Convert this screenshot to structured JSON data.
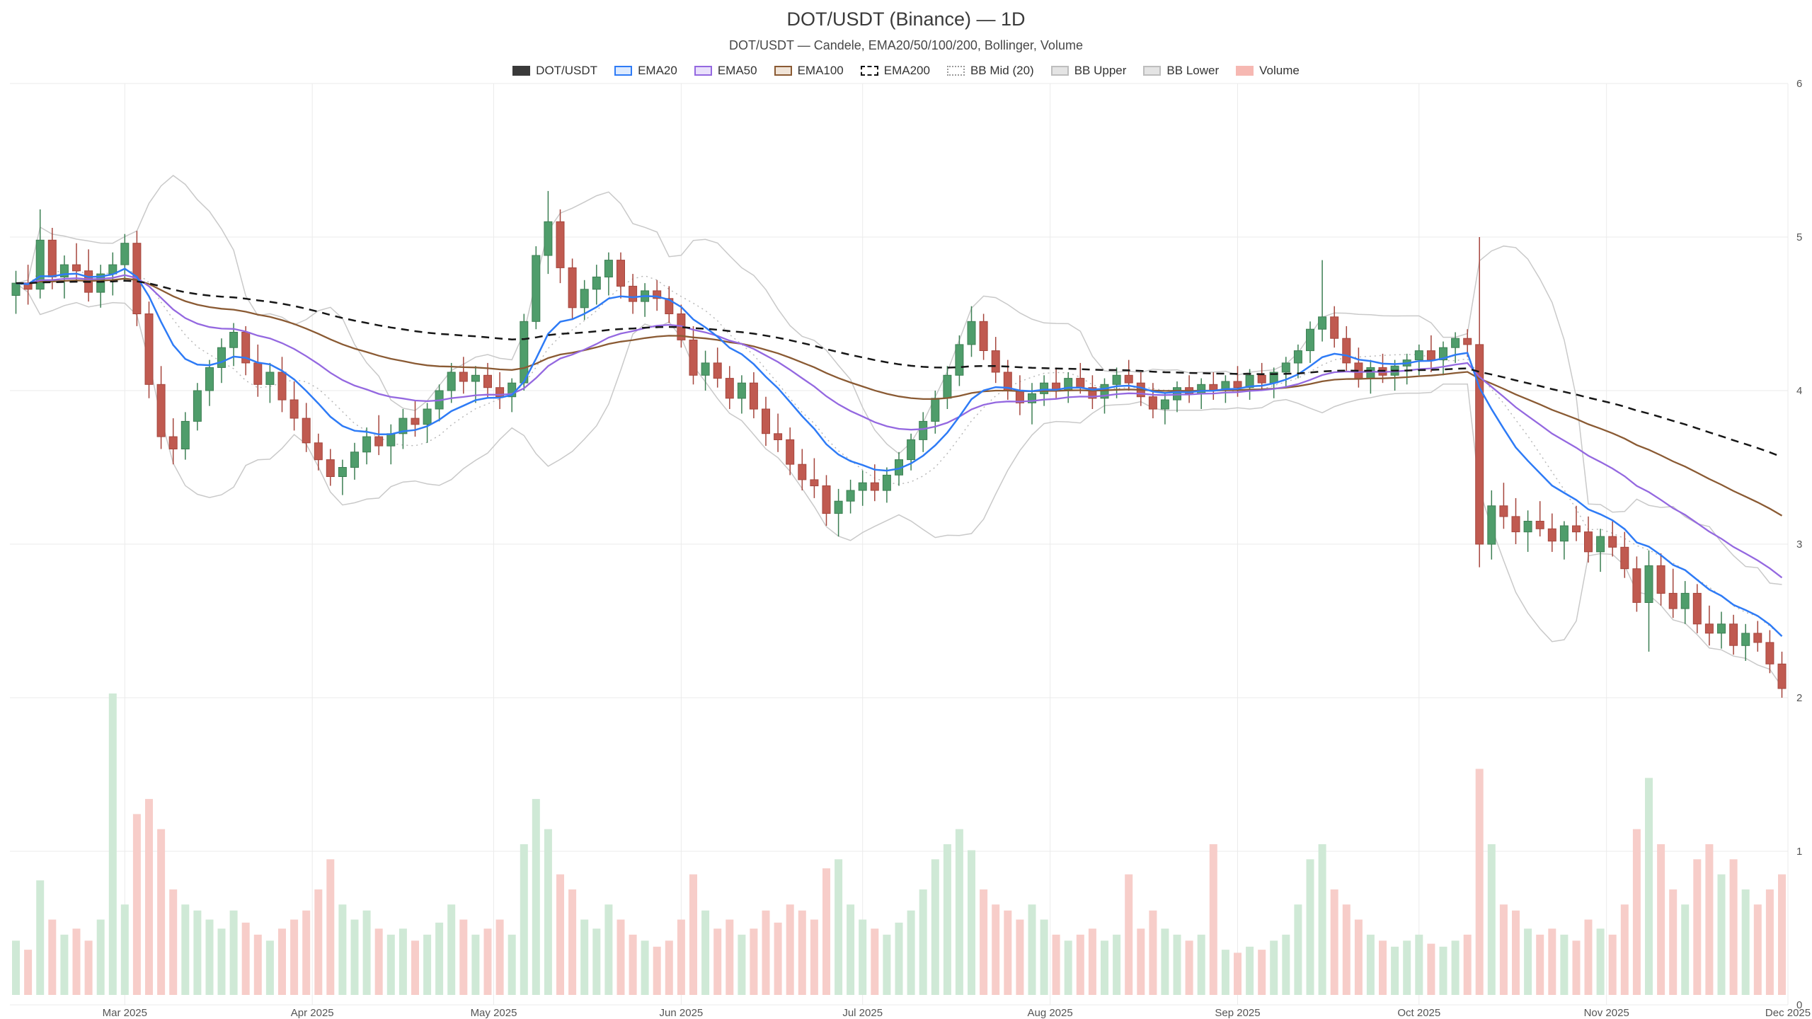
{
  "header": {
    "title": "DOT/USDT (Binance) — 1D",
    "subtitle": "DOT/USDT — Candele, EMA20/50/100/200, Bollinger, Volume"
  },
  "legend": {
    "items": [
      {
        "key": "dotusdt",
        "label": "DOT/USDT",
        "swatch": {
          "fill": "#3a3a3a",
          "border": "#3a3a3a",
          "style": "solid"
        }
      },
      {
        "key": "ema20",
        "label": "EMA20",
        "swatch": {
          "fill": "#ddeafe",
          "border": "#2e7bf6",
          "style": "solid"
        }
      },
      {
        "key": "ema50",
        "label": "EMA50",
        "swatch": {
          "fill": "#e9e0fb",
          "border": "#9468e0",
          "style": "solid"
        }
      },
      {
        "key": "ema100",
        "label": "EMA100",
        "swatch": {
          "fill": "#f0e4d8",
          "border": "#8a5a33",
          "style": "solid"
        }
      },
      {
        "key": "ema200",
        "label": "EMA200",
        "swatch": {
          "fill": "#ffffff",
          "border": "#111111",
          "style": "dashed"
        }
      },
      {
        "key": "bbmid",
        "label": "BB Mid (20)",
        "swatch": {
          "fill": "#ffffff",
          "border": "#9a9a9a",
          "style": "dotted"
        }
      },
      {
        "key": "bbupper",
        "label": "BB Upper",
        "swatch": {
          "fill": "#e4e4e4",
          "border": "#bdbdbd",
          "style": "solid"
        }
      },
      {
        "key": "bblower",
        "label": "BB Lower",
        "swatch": {
          "fill": "#e4e4e4",
          "border": "#bdbdbd",
          "style": "solid"
        }
      },
      {
        "key": "volume",
        "label": "Volume",
        "swatch": {
          "fill": "#f6b8b2",
          "border": "#f6b8b2",
          "style": "solid"
        }
      }
    ]
  },
  "axes": {
    "y_ticks": [
      6,
      5,
      4,
      3,
      2,
      1,
      0
    ],
    "x_ticks": [
      {
        "label": "Mar 2025",
        "day": 19
      },
      {
        "label": "Apr 2025",
        "day": 50
      },
      {
        "label": "May 2025",
        "day": 80
      },
      {
        "label": "Jun 2025",
        "day": 111
      },
      {
        "label": "Jul 2025",
        "day": 141
      },
      {
        "label": "Aug 2025",
        "day": 172
      },
      {
        "label": "Sep 2025",
        "day": 203
      },
      {
        "label": "Oct 2025",
        "day": 233
      },
      {
        "label": "Nov 2025",
        "day": 264
      },
      {
        "label": "Dec 2025",
        "day": 294
      }
    ]
  },
  "chart_data": {
    "type": "candlestick",
    "title": "DOT/USDT (Binance) — 1D",
    "symbol": "DOT/USDT",
    "exchange": "Binance",
    "timeframe": "1D",
    "ylim": [
      0,
      6
    ],
    "grid": true,
    "legend_position": "top-center",
    "overlays": [
      "EMA20",
      "EMA50",
      "EMA100",
      "EMA200",
      "Bollinger(20,2)",
      "Volume"
    ],
    "candles_step_days": 2,
    "emas": [
      {
        "label": "EMA20",
        "period": 20,
        "color": "#2e7bf6",
        "dash": "",
        "width": 2.5
      },
      {
        "label": "EMA50",
        "period": 50,
        "color": "#9468e0",
        "dash": "",
        "width": 2.3
      },
      {
        "label": "EMA100",
        "period": 100,
        "color": "#8a5a33",
        "dash": "",
        "width": 2.3
      },
      {
        "label": "EMA200",
        "period": 200,
        "color": "#161616",
        "dash": "11 8",
        "width": 2.5
      }
    ],
    "bollinger": {
      "period": 20,
      "mult": 2,
      "mid_color": "#b5b5b5",
      "band_color": "#c9c9c9"
    },
    "colors": {
      "up": "#4f9d6b",
      "up_border": "#3c7f53",
      "down": "#c05a50",
      "down_border": "#a5453c",
      "vol_up": "#cfe9d6",
      "vol_down": "#f7cdc9",
      "grid": "#ebebeb",
      "axis_text": "#555555",
      "background": "#ffffff"
    },
    "ohlc": [
      [
        4.62,
        4.78,
        4.5,
        4.7
      ],
      [
        4.7,
        4.82,
        4.56,
        4.66
      ],
      [
        4.66,
        5.18,
        4.6,
        4.98
      ],
      [
        4.98,
        5.06,
        4.66,
        4.74
      ],
      [
        4.74,
        4.88,
        4.6,
        4.82
      ],
      [
        4.82,
        4.96,
        4.72,
        4.78
      ],
      [
        4.78,
        4.92,
        4.58,
        4.64
      ],
      [
        4.64,
        4.82,
        4.54,
        4.76
      ],
      [
        4.76,
        4.9,
        4.62,
        4.82
      ],
      [
        4.82,
        5.02,
        4.72,
        4.96
      ],
      [
        4.96,
        5.04,
        4.42,
        4.5
      ],
      [
        4.5,
        4.58,
        3.95,
        4.04
      ],
      [
        4.04,
        4.16,
        3.62,
        3.7
      ],
      [
        3.7,
        3.82,
        3.52,
        3.62
      ],
      [
        3.62,
        3.86,
        3.55,
        3.8
      ],
      [
        3.8,
        4.05,
        3.74,
        4.0
      ],
      [
        4.0,
        4.2,
        3.9,
        4.15
      ],
      [
        4.15,
        4.34,
        4.05,
        4.28
      ],
      [
        4.28,
        4.44,
        4.16,
        4.38
      ],
      [
        4.38,
        4.42,
        4.1,
        4.18
      ],
      [
        4.18,
        4.3,
        3.96,
        4.04
      ],
      [
        4.04,
        4.18,
        3.92,
        4.12
      ],
      [
        4.12,
        4.22,
        3.86,
        3.94
      ],
      [
        3.94,
        4.06,
        3.74,
        3.82
      ],
      [
        3.82,
        3.92,
        3.6,
        3.66
      ],
      [
        3.66,
        3.72,
        3.48,
        3.55
      ],
      [
        3.55,
        3.62,
        3.38,
        3.44
      ],
      [
        3.44,
        3.55,
        3.32,
        3.5
      ],
      [
        3.5,
        3.66,
        3.42,
        3.6
      ],
      [
        3.6,
        3.76,
        3.52,
        3.7
      ],
      [
        3.7,
        3.84,
        3.58,
        3.64
      ],
      [
        3.64,
        3.78,
        3.52,
        3.72
      ],
      [
        3.72,
        3.88,
        3.62,
        3.82
      ],
      [
        3.82,
        3.94,
        3.7,
        3.78
      ],
      [
        3.78,
        3.92,
        3.66,
        3.88
      ],
      [
        3.88,
        4.04,
        3.8,
        4.0
      ],
      [
        4.0,
        4.18,
        3.92,
        4.12
      ],
      [
        4.12,
        4.22,
        3.98,
        4.06
      ],
      [
        4.06,
        4.16,
        3.92,
        4.1
      ],
      [
        4.1,
        4.18,
        3.95,
        4.02
      ],
      [
        4.02,
        4.12,
        3.88,
        3.96
      ],
      [
        3.96,
        4.08,
        3.86,
        4.05
      ],
      [
        4.05,
        4.5,
        4.0,
        4.45
      ],
      [
        4.45,
        4.94,
        4.4,
        4.88
      ],
      [
        4.88,
        5.3,
        4.76,
        5.1
      ],
      [
        5.1,
        5.18,
        4.7,
        4.8
      ],
      [
        4.8,
        4.86,
        4.46,
        4.54
      ],
      [
        4.54,
        4.72,
        4.46,
        4.66
      ],
      [
        4.66,
        4.82,
        4.56,
        4.74
      ],
      [
        4.74,
        4.9,
        4.62,
        4.85
      ],
      [
        4.85,
        4.9,
        4.6,
        4.68
      ],
      [
        4.68,
        4.76,
        4.5,
        4.58
      ],
      [
        4.58,
        4.7,
        4.48,
        4.65
      ],
      [
        4.65,
        4.72,
        4.52,
        4.6
      ],
      [
        4.6,
        4.68,
        4.44,
        4.5
      ],
      [
        4.5,
        4.56,
        4.28,
        4.33
      ],
      [
        4.33,
        4.42,
        4.04,
        4.1
      ],
      [
        4.1,
        4.26,
        4.0,
        4.18
      ],
      [
        4.18,
        4.28,
        4.02,
        4.08
      ],
      [
        4.08,
        4.16,
        3.88,
        3.95
      ],
      [
        3.95,
        4.1,
        3.85,
        4.05
      ],
      [
        4.05,
        4.12,
        3.82,
        3.88
      ],
      [
        3.88,
        3.96,
        3.64,
        3.72
      ],
      [
        3.72,
        3.85,
        3.6,
        3.68
      ],
      [
        3.68,
        3.76,
        3.45,
        3.52
      ],
      [
        3.52,
        3.62,
        3.35,
        3.42
      ],
      [
        3.42,
        3.56,
        3.3,
        3.38
      ],
      [
        3.38,
        3.45,
        3.12,
        3.2
      ],
      [
        3.2,
        3.36,
        3.05,
        3.28
      ],
      [
        3.28,
        3.42,
        3.2,
        3.35
      ],
      [
        3.35,
        3.48,
        3.25,
        3.4
      ],
      [
        3.4,
        3.52,
        3.28,
        3.35
      ],
      [
        3.35,
        3.5,
        3.27,
        3.45
      ],
      [
        3.45,
        3.6,
        3.38,
        3.55
      ],
      [
        3.55,
        3.72,
        3.48,
        3.68
      ],
      [
        3.68,
        3.86,
        3.6,
        3.8
      ],
      [
        3.8,
        4.0,
        3.72,
        3.95
      ],
      [
        3.95,
        4.16,
        3.88,
        4.1
      ],
      [
        4.1,
        4.36,
        4.03,
        4.3
      ],
      [
        4.3,
        4.55,
        4.22,
        4.45
      ],
      [
        4.45,
        4.5,
        4.2,
        4.26
      ],
      [
        4.26,
        4.35,
        4.05,
        4.12
      ],
      [
        4.12,
        4.2,
        3.94,
        4.0
      ],
      [
        4.0,
        4.1,
        3.84,
        3.92
      ],
      [
        3.92,
        4.05,
        3.78,
        3.98
      ],
      [
        3.98,
        4.1,
        3.9,
        4.05
      ],
      [
        4.05,
        4.15,
        3.95,
        4.0
      ],
      [
        4.0,
        4.12,
        3.92,
        4.08
      ],
      [
        4.08,
        4.18,
        3.98,
        4.02
      ],
      [
        4.02,
        4.1,
        3.88,
        3.95
      ],
      [
        3.95,
        4.08,
        3.85,
        4.04
      ],
      [
        4.04,
        4.15,
        3.95,
        4.1
      ],
      [
        4.1,
        4.2,
        4.0,
        4.05
      ],
      [
        4.05,
        4.12,
        3.9,
        3.96
      ],
      [
        3.96,
        4.05,
        3.82,
        3.88
      ],
      [
        3.88,
        3.98,
        3.78,
        3.94
      ],
      [
        3.94,
        4.06,
        3.86,
        4.02
      ],
      [
        4.02,
        4.1,
        3.92,
        3.98
      ],
      [
        3.98,
        4.08,
        3.88,
        4.04
      ],
      [
        4.04,
        4.12,
        3.94,
        4.0
      ],
      [
        4.0,
        4.1,
        3.92,
        4.06
      ],
      [
        4.06,
        4.16,
        3.96,
        4.02
      ],
      [
        4.02,
        4.14,
        3.94,
        4.1
      ],
      [
        4.1,
        4.18,
        4.0,
        4.05
      ],
      [
        4.05,
        4.15,
        3.95,
        4.12
      ],
      [
        4.12,
        4.22,
        4.02,
        4.18
      ],
      [
        4.18,
        4.3,
        4.08,
        4.26
      ],
      [
        4.26,
        4.45,
        4.18,
        4.4
      ],
      [
        4.4,
        4.85,
        4.32,
        4.48
      ],
      [
        4.48,
        4.55,
        4.28,
        4.34
      ],
      [
        4.34,
        4.42,
        4.12,
        4.18
      ],
      [
        4.18,
        4.28,
        4.02,
        4.08
      ],
      [
        4.08,
        4.2,
        3.98,
        4.15
      ],
      [
        4.15,
        4.24,
        4.05,
        4.1
      ],
      [
        4.1,
        4.2,
        4.0,
        4.16
      ],
      [
        4.16,
        4.24,
        4.04,
        4.2
      ],
      [
        4.2,
        4.3,
        4.1,
        4.26
      ],
      [
        4.26,
        4.36,
        4.12,
        4.2
      ],
      [
        4.2,
        4.32,
        4.1,
        4.28
      ],
      [
        4.28,
        4.38,
        4.18,
        4.34
      ],
      [
        4.34,
        4.4,
        4.22,
        4.3
      ],
      [
        4.3,
        5.0,
        2.85,
        3.0
      ],
      [
        3.0,
        3.35,
        2.9,
        3.25
      ],
      [
        3.25,
        3.4,
        3.1,
        3.18
      ],
      [
        3.18,
        3.3,
        3.0,
        3.08
      ],
      [
        3.08,
        3.22,
        2.95,
        3.15
      ],
      [
        3.15,
        3.28,
        3.05,
        3.1
      ],
      [
        3.1,
        3.2,
        2.95,
        3.02
      ],
      [
        3.02,
        3.15,
        2.9,
        3.12
      ],
      [
        3.12,
        3.25,
        3.02,
        3.08
      ],
      [
        3.08,
        3.18,
        2.88,
        2.95
      ],
      [
        2.95,
        3.1,
        2.82,
        3.05
      ],
      [
        3.05,
        3.15,
        2.92,
        2.98
      ],
      [
        2.98,
        3.08,
        2.78,
        2.84
      ],
      [
        2.84,
        2.92,
        2.56,
        2.62
      ],
      [
        2.62,
        2.96,
        2.3,
        2.86
      ],
      [
        2.86,
        2.94,
        2.6,
        2.68
      ],
      [
        2.68,
        2.84,
        2.52,
        2.58
      ],
      [
        2.58,
        2.76,
        2.48,
        2.68
      ],
      [
        2.68,
        2.74,
        2.42,
        2.48
      ],
      [
        2.48,
        2.6,
        2.34,
        2.42
      ],
      [
        2.42,
        2.56,
        2.32,
        2.48
      ],
      [
        2.48,
        2.54,
        2.28,
        2.34
      ],
      [
        2.34,
        2.48,
        2.24,
        2.42
      ],
      [
        2.42,
        2.5,
        2.3,
        2.36
      ],
      [
        2.36,
        2.44,
        2.16,
        2.22
      ],
      [
        2.22,
        2.3,
        2.0,
        2.06
      ]
    ],
    "volume": [
      0.18,
      0.15,
      0.38,
      0.25,
      0.2,
      0.22,
      0.18,
      0.25,
      1.0,
      0.3,
      0.6,
      0.65,
      0.55,
      0.35,
      0.3,
      0.28,
      0.25,
      0.22,
      0.28,
      0.24,
      0.2,
      0.18,
      0.22,
      0.25,
      0.28,
      0.35,
      0.45,
      0.3,
      0.25,
      0.28,
      0.22,
      0.2,
      0.22,
      0.18,
      0.2,
      0.24,
      0.3,
      0.25,
      0.2,
      0.22,
      0.25,
      0.2,
      0.5,
      0.65,
      0.55,
      0.4,
      0.35,
      0.25,
      0.22,
      0.3,
      0.25,
      0.2,
      0.18,
      0.16,
      0.18,
      0.25,
      0.4,
      0.28,
      0.22,
      0.25,
      0.2,
      0.22,
      0.28,
      0.24,
      0.3,
      0.28,
      0.25,
      0.42,
      0.45,
      0.3,
      0.25,
      0.22,
      0.2,
      0.24,
      0.28,
      0.35,
      0.45,
      0.5,
      0.55,
      0.48,
      0.35,
      0.3,
      0.28,
      0.25,
      0.3,
      0.25,
      0.2,
      0.18,
      0.2,
      0.22,
      0.18,
      0.2,
      0.4,
      0.22,
      0.28,
      0.22,
      0.2,
      0.18,
      0.2,
      0.5,
      0.15,
      0.14,
      0.16,
      0.15,
      0.18,
      0.2,
      0.3,
      0.45,
      0.5,
      0.35,
      0.3,
      0.25,
      0.2,
      0.18,
      0.16,
      0.18,
      0.2,
      0.17,
      0.16,
      0.18,
      0.2,
      0.75,
      0.5,
      0.3,
      0.28,
      0.22,
      0.2,
      0.22,
      0.2,
      0.18,
      0.25,
      0.22,
      0.2,
      0.3,
      0.55,
      0.72,
      0.5,
      0.35,
      0.3,
      0.45,
      0.5,
      0.4,
      0.45,
      0.35,
      0.3,
      0.35,
      0.4
    ]
  }
}
